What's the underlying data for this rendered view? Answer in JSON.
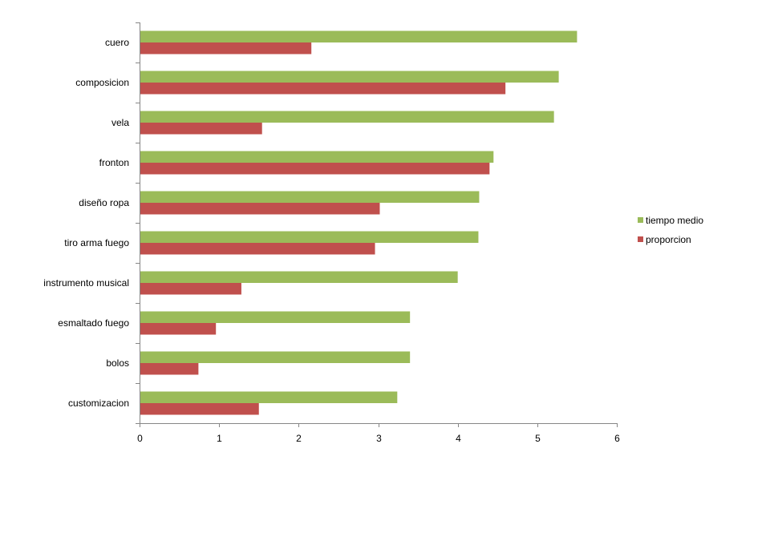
{
  "chart_data": {
    "type": "bar",
    "orientation": "horizontal",
    "categories": [
      "cuero",
      "composicion",
      "vela",
      "fronton",
      "diseño ropa",
      "tiro arma fuego",
      "instrumento musical",
      "esmaltado fuego",
      "bolos",
      "customizacion"
    ],
    "series": [
      {
        "name": "tiempo medio",
        "color": "#9bbb59",
        "values": [
          5.5,
          5.27,
          5.21,
          4.45,
          4.27,
          4.26,
          4.0,
          3.4,
          3.4,
          3.24
        ]
      },
      {
        "name": "proporcion",
        "color": "#c0504d",
        "values": [
          2.16,
          4.6,
          1.54,
          4.4,
          3.02,
          2.96,
          1.28,
          0.96,
          0.74,
          1.5
        ]
      }
    ],
    "xlim": [
      0,
      6
    ],
    "xticks": [
      "0",
      "1",
      "2",
      "3",
      "4",
      "5",
      "6"
    ],
    "grid": false,
    "legend_position": "right"
  }
}
